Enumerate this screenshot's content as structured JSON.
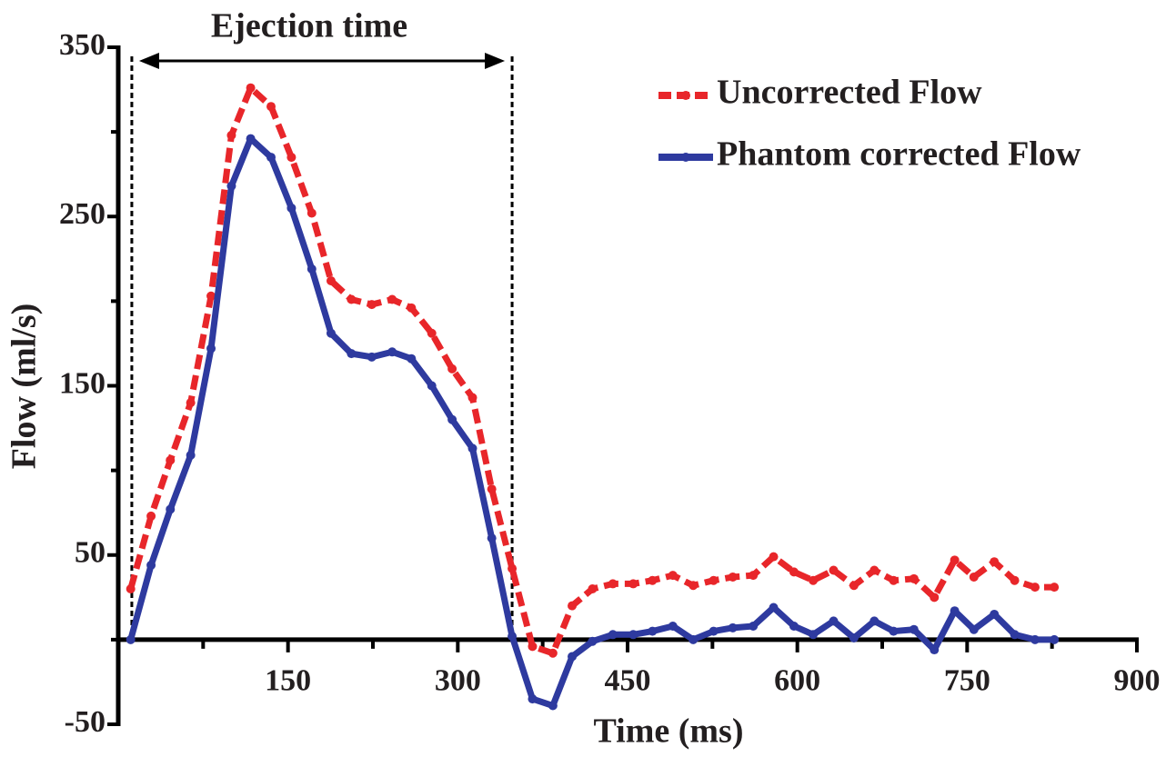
{
  "chart_data": {
    "type": "line",
    "title": "Ejection time",
    "x_label": "Time (ms)",
    "y_label": "Flow (ml/s)",
    "ejection_window": [
      12,
      348
    ],
    "x": [
      11,
      29,
      46,
      64,
      82,
      100,
      117,
      135,
      153,
      171,
      188,
      206,
      224,
      242,
      259,
      277,
      295,
      313,
      330,
      348,
      366,
      384,
      401,
      419,
      437,
      455,
      472,
      490,
      508,
      526,
      543,
      561,
      579,
      597,
      614,
      632,
      650,
      668,
      685,
      703,
      721,
      739,
      756,
      774,
      792,
      810,
      827
    ],
    "series": [
      {
        "name": "Uncorrected Flow",
        "color": "#e8262a",
        "dashed": true,
        "values": [
          30,
          73,
          106,
          140,
          203,
          298,
          326,
          315,
          285,
          252,
          212,
          201,
          198,
          201,
          196,
          181,
          160,
          143,
          89,
          42,
          -4,
          -8,
          20,
          30,
          33,
          33,
          35,
          38,
          32,
          35,
          37,
          38,
          49,
          40,
          35,
          41,
          32,
          41,
          35,
          36,
          25,
          47,
          37,
          46,
          35,
          31,
          31
        ]
      },
      {
        "name": "Phantom corrected Flow",
        "color": "#2e3a9f",
        "dashed": false,
        "values": [
          0,
          44,
          77,
          109,
          172,
          268,
          296,
          285,
          255,
          219,
          181,
          169,
          167,
          170,
          166,
          150,
          130,
          113,
          60,
          2,
          -35,
          -39,
          -10,
          -1,
          3,
          3,
          5,
          8,
          0,
          5,
          7,
          8,
          19,
          8,
          3,
          11,
          1,
          11,
          5,
          6,
          -6,
          17,
          6,
          15,
          3,
          0,
          0
        ]
      }
    ],
    "xlim": [
      0,
      900
    ],
    "xticks": [
      150,
      300,
      450,
      600,
      750,
      900
    ],
    "xticks_minor": [
      75,
      225,
      375,
      525,
      675,
      825
    ],
    "ylim": [
      -50,
      350
    ],
    "yticks": [
      -50,
      50,
      150,
      250,
      350
    ],
    "yticks_minor": [
      0,
      100,
      200,
      300
    ],
    "legend": "top-right"
  }
}
